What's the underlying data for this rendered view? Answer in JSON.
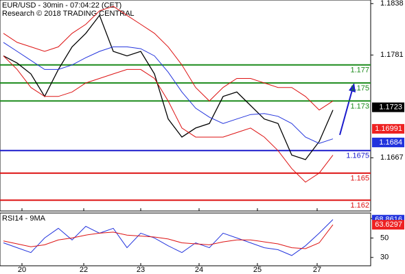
{
  "chart_data": [
    {
      "type": "line",
      "title": "EUR/USD - 30min - 07:04:22 (CET)",
      "subtitle": "Research © 2018 TRADING CENTRAL",
      "x": [
        0,
        1,
        2,
        3,
        4,
        5,
        6,
        7,
        8,
        9,
        10,
        11,
        12,
        13,
        14,
        15,
        16,
        17,
        18,
        19,
        20,
        21,
        22,
        23,
        24
      ],
      "xlim": [
        -0.25,
        26.75
      ],
      "xticks": [
        {
          "value": 1.35,
          "label": "20"
        },
        {
          "value": 5.85,
          "label": "22"
        },
        {
          "value": 10,
          "label": "23"
        },
        {
          "value": 14.25,
          "label": "24"
        },
        {
          "value": 18.5,
          "label": "25"
        },
        {
          "value": 22.85,
          "label": "27"
        }
      ],
      "ylim": [
        1.1608,
        1.1842
      ],
      "yticks": [
        1.1838,
        1.1781,
        1.1667
      ],
      "series": [
        {
          "color": "#000000",
          "values": [
            1.178,
            1.1772,
            1.176,
            1.1735,
            1.1765,
            1.179,
            1.1805,
            1.1825,
            1.1785,
            1.178,
            1.1785,
            1.176,
            1.171,
            1.169,
            1.17,
            1.1705,
            1.1735,
            1.174,
            1.1725,
            1.171,
            1.1705,
            1.167,
            1.1665,
            1.1685,
            1.172
          ]
        },
        {
          "color": "#2233dd",
          "values": [
            1.1795,
            1.1785,
            1.1775,
            1.1765,
            1.1765,
            1.177,
            1.1778,
            1.1785,
            1.179,
            1.179,
            1.1788,
            1.178,
            1.1762,
            1.174,
            1.1722,
            1.1712,
            1.1705,
            1.171,
            1.1715,
            1.1716,
            1.1713,
            1.1705,
            1.169,
            1.1683,
            1.1688
          ]
        },
        {
          "color": "#dd1111",
          "values": [
            1.1805,
            1.1795,
            1.179,
            1.1785,
            1.179,
            1.1805,
            1.1815,
            1.183,
            1.1835,
            1.1825,
            1.1815,
            1.1805,
            1.179,
            1.177,
            1.1745,
            1.173,
            1.1745,
            1.1755,
            1.1755,
            1.175,
            1.1745,
            1.1745,
            1.1735,
            1.172,
            1.173
          ]
        },
        {
          "color": "#dd1111",
          "values": [
            1.178,
            1.1765,
            1.1745,
            1.1735,
            1.1735,
            1.174,
            1.175,
            1.1755,
            1.176,
            1.1765,
            1.1765,
            1.1755,
            1.173,
            1.17,
            1.169,
            1.169,
            1.169,
            1.1695,
            1.17,
            1.169,
            1.1675,
            1.1655,
            1.164,
            1.165,
            1.167
          ]
        }
      ],
      "levels": [
        {
          "value": 1.177,
          "color": "#1a8a1a"
        },
        {
          "value": 1.175,
          "color": "#1a8a1a"
        },
        {
          "value": 1.173,
          "color": "#1a8a1a"
        },
        {
          "value": 1.1675,
          "color": "#1a1acc"
        },
        {
          "value": 1.165,
          "color": "#dd1111"
        },
        {
          "value": 1.162,
          "color": "#dd1111"
        }
      ],
      "markers": [
        {
          "value": 1.1723,
          "color": "#000000"
        },
        {
          "value": 1.16991,
          "color": "#ee2222"
        },
        {
          "value": 1.1684,
          "color": "#2233dd"
        }
      ]
    },
    {
      "type": "line",
      "title": "RSI14 - 9MA",
      "x": [
        0,
        1,
        2,
        3,
        4,
        5,
        6,
        7,
        8,
        9,
        10,
        11,
        12,
        13,
        14,
        15,
        16,
        17,
        18,
        19,
        20,
        21,
        22,
        23,
        24
      ],
      "xlim": [
        -0.25,
        26.75
      ],
      "ylim": [
        21.4,
        75.7
      ],
      "yticks": [
        70,
        50,
        30
      ],
      "series": [
        {
          "color": "#2233dd",
          "values": [
            45,
            40,
            35,
            50,
            60,
            48,
            62,
            55,
            60,
            40,
            55,
            50,
            42,
            35,
            45,
            40,
            55,
            50,
            45,
            40,
            38,
            32,
            42,
            55,
            69
          ]
        },
        {
          "color": "#dd1111",
          "values": [
            47,
            44,
            41,
            43,
            48,
            50,
            53,
            55,
            56,
            53,
            52,
            51,
            49,
            45,
            44,
            43,
            46,
            48,
            48,
            46,
            44,
            40,
            39,
            45,
            63.6297
          ]
        }
      ],
      "markers": [
        {
          "value": 68.8616,
          "color": "#2233dd"
        },
        {
          "value": 63.6297,
          "color": "#ee2222"
        }
      ]
    }
  ]
}
